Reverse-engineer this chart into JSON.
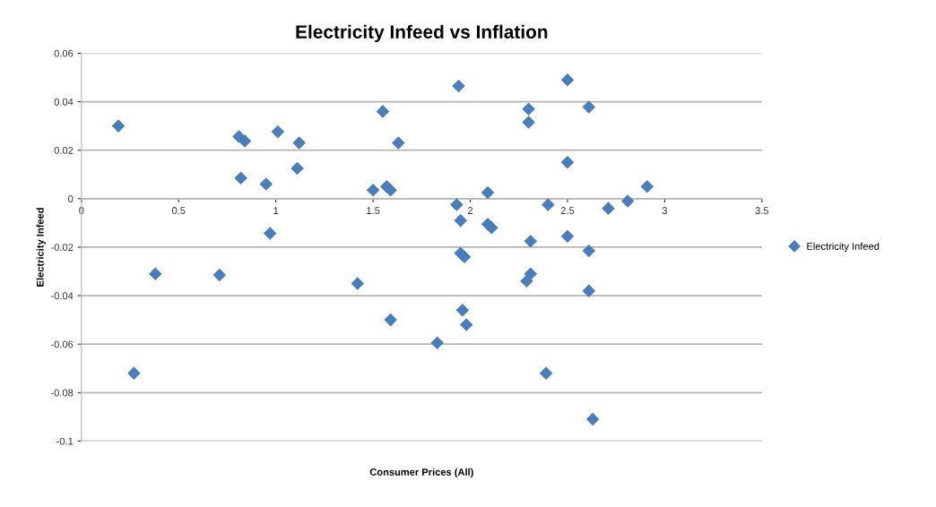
{
  "chart_data": {
    "type": "scatter",
    "title": "Electricity Infeed vs Inflation",
    "xlabel": "Consumer Prices (All)",
    "ylabel": "Electricity Infeed",
    "series": [
      {
        "name": "Electricity Infeed",
        "color": "#4a7ebb",
        "x": [
          0.19,
          0.81,
          0.84,
          1.01,
          1.12,
          1.11,
          0.82,
          0.95,
          1.55,
          1.63,
          1.5,
          1.57,
          1.59,
          0.97,
          0.38,
          0.71,
          1.42,
          1.59,
          0.27,
          1.94,
          2.5,
          2.3,
          2.3,
          2.61,
          2.5,
          2.09,
          2.91,
          2.81,
          2.71,
          2.4,
          1.93,
          1.95,
          2.09,
          2.11,
          2.31,
          2.5,
          2.61,
          1.95,
          1.97,
          2.31,
          2.29,
          2.61,
          1.96,
          1.98,
          1.83,
          2.39,
          2.63
        ],
        "values": [
          0.03,
          0.0256,
          0.0238,
          0.0276,
          0.023,
          0.0125,
          0.0085,
          0.006,
          0.036,
          0.023,
          0.0035,
          0.005,
          0.0035,
          -0.0143,
          -0.031,
          -0.0315,
          -0.035,
          -0.05,
          -0.072,
          0.0465,
          0.049,
          0.037,
          0.0315,
          0.0378,
          0.015,
          0.0025,
          0.005,
          -0.001,
          -0.004,
          -0.0025,
          -0.0025,
          -0.009,
          -0.0105,
          -0.012,
          -0.0175,
          -0.0155,
          -0.0215,
          -0.0225,
          -0.024,
          -0.031,
          -0.034,
          -0.038,
          -0.046,
          -0.052,
          -0.0595,
          -0.072,
          -0.091
        ]
      }
    ],
    "xlim": [
      0,
      3.5
    ],
    "xticks": [
      0,
      0.5,
      1,
      1.5,
      2,
      2.5,
      3,
      3.5
    ],
    "ylim": [
      -0.1,
      0.06
    ],
    "yticks": [
      -0.1,
      -0.08,
      -0.06,
      -0.04,
      -0.02,
      0,
      0.02,
      0.04,
      0.06
    ],
    "grid": "y",
    "legend": "right",
    "marker": "diamond"
  }
}
